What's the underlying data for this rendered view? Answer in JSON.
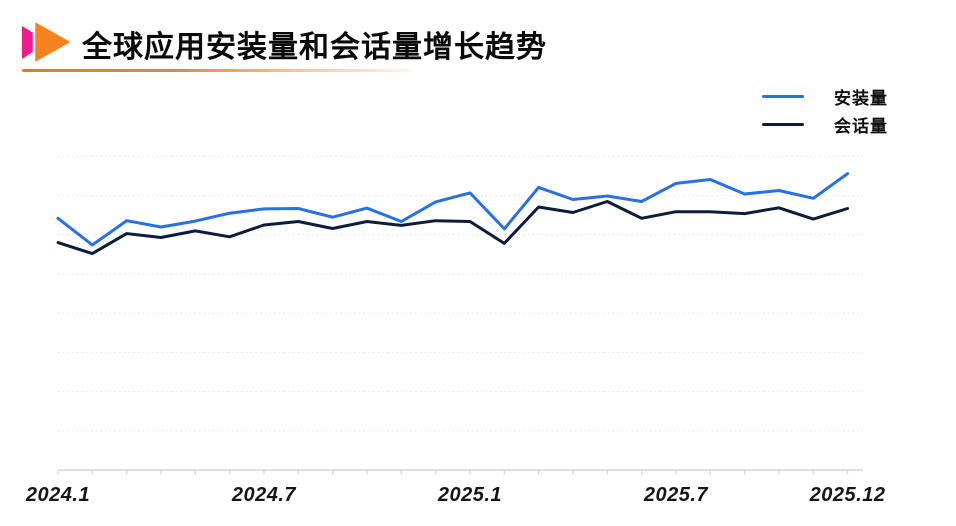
{
  "header": {
    "title": "全球应用安装量和会话量增长趋势",
    "icon": "double-triangle-arrow",
    "icon_colors": {
      "pink": "#ec1c8d",
      "orange": "#f6821e"
    },
    "underline_color": "#ed7914"
  },
  "legend": {
    "position": "top-right",
    "items": [
      {
        "key": "installs",
        "label": "安装量",
        "color": "#2670e8"
      },
      {
        "key": "sessions",
        "label": "会话量",
        "color": "#0e1c3c"
      }
    ]
  },
  "chart_data": {
    "type": "line",
    "title": "全球应用安装量和会话量增长趋势",
    "x": [
      "2024.1",
      "2024.2",
      "2024.3",
      "2024.4",
      "2024.5",
      "2024.6",
      "2024.7",
      "2024.8",
      "2024.9",
      "2024.10",
      "2024.11",
      "2024.12",
      "2025.1",
      "2025.2",
      "2025.3",
      "2025.4",
      "2025.5",
      "2025.6",
      "2025.7",
      "2025.8",
      "2025.9",
      "2025.10",
      "2025.11",
      "2025.12"
    ],
    "x_axis_tick_labels": [
      "2024.1",
      "2024.7",
      "2025.1",
      "2025.7",
      "2025.12"
    ],
    "xlabel": "",
    "ylabel": "",
    "y_axis": {
      "labels_visible": false,
      "units": "relative growth index (unlabeled axis, one gridline = 10)",
      "min": 0,
      "max": 90,
      "gridline_step": 10
    },
    "grid": "horizontal dotted lines",
    "legend_position": "top-right",
    "series": [
      {
        "key": "installs",
        "name": "安装量",
        "color": "#2670e8",
        "values": [
          64.2,
          57.4,
          63.6,
          62.0,
          63.5,
          65.5,
          66.6,
          66.7,
          64.5,
          66.8,
          63.4,
          68.4,
          70.7,
          61.5,
          72.1,
          69.0,
          69.9,
          68.5,
          73.1,
          74.1,
          70.4,
          71.3,
          69.3,
          75.6
        ]
      },
      {
        "key": "sessions",
        "name": "会话量",
        "color": "#0e1c3c",
        "values": [
          58.0,
          55.2,
          60.3,
          59.3,
          61.0,
          59.5,
          62.5,
          63.4,
          61.6,
          63.4,
          62.4,
          63.6,
          63.4,
          57.8,
          67.1,
          65.7,
          68.5,
          64.2,
          65.9,
          65.9,
          65.4,
          66.9,
          64.0,
          66.7
        ]
      }
    ]
  }
}
